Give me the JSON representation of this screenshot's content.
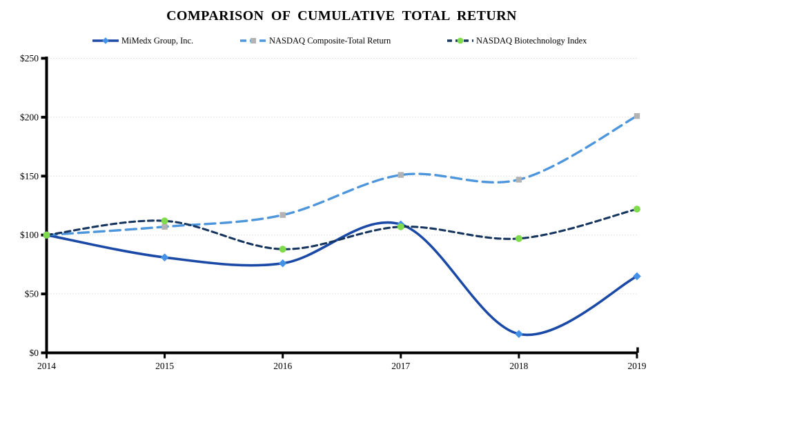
{
  "title": "COMPARISON OF CUMULATIVE TOTAL RETURN",
  "chart_data": {
    "type": "line",
    "x": [
      2014,
      2015,
      2016,
      2017,
      2018,
      2019
    ],
    "series": [
      {
        "id": "mimedx",
        "name": "MiMedx Group, Inc.",
        "values": [
          100,
          81,
          76,
          109,
          16,
          65
        ],
        "color": "#1B49A6",
        "dash": "solid",
        "marker": "diamond",
        "marker_color": "#4492E8"
      },
      {
        "id": "nasdaq-composite",
        "name": "NASDAQ Composite-Total Return",
        "values": [
          100,
          107,
          117,
          151,
          147,
          201
        ],
        "color": "#4E96DC",
        "dash": "long-dash",
        "marker": "square",
        "marker_color": "#B3B3B3"
      },
      {
        "id": "nasdaq-biotech",
        "name": "NASDAQ Biotechnology Index",
        "values": [
          100,
          112,
          88,
          107,
          97,
          122
        ],
        "color": "#16355E",
        "dash": "dash",
        "marker": "circle",
        "marker_color": "#7FDB4B"
      }
    ],
    "y_ticks": [
      "$0",
      "$50",
      "$100",
      "$150",
      "$200",
      "$250"
    ],
    "y_tick_values": [
      0,
      50,
      100,
      150,
      200,
      250
    ],
    "x_tick_labels": [
      "2014",
      "2015",
      "2016",
      "2017",
      "2018",
      "2019"
    ],
    "ylim": [
      0,
      250
    ],
    "xlabel": "",
    "ylabel": "",
    "grid": true,
    "legend_position": "top",
    "grid_color": "#D9D9D9",
    "axis_color": "#000000",
    "text_color": "#000000"
  }
}
